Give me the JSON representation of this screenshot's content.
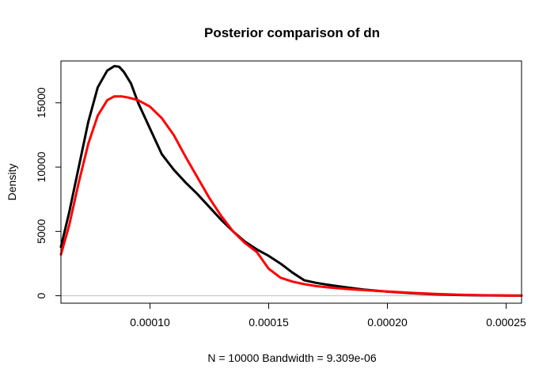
{
  "chart_data": {
    "type": "line",
    "title": "Posterior comparison of dn",
    "xlabel": "N = 10000   Bandwidth = 9.309e-06",
    "ylabel": "Density",
    "xlim": [
      6.25e-05,
      0.0002565
    ],
    "ylim": [
      -580,
      18250
    ],
    "x_ticks": [
      0.0001,
      0.00015,
      0.0002,
      0.00025
    ],
    "x_tick_labels": [
      "0.00010",
      "0.00015",
      "0.00020",
      "0.00025"
    ],
    "y_ticks": [
      0,
      5000,
      10000,
      15000
    ],
    "y_tick_labels": [
      "0",
      "5000",
      "10000",
      "15000"
    ],
    "zero_line": true,
    "grid": false,
    "series": [
      {
        "color": "#000000",
        "x": [
          6.25e-05,
          6.6e-05,
          7e-05,
          7.4e-05,
          7.8e-05,
          8.2e-05,
          8.5e-05,
          8.7e-05,
          8.9e-05,
          9.2e-05,
          9.5e-05,
          0.0001,
          0.000105,
          0.00011,
          0.000115,
          0.00012,
          0.000125,
          0.00013,
          0.000135,
          0.00014,
          0.000145,
          0.00015,
          0.000155,
          0.00016,
          0.000165,
          0.00017,
          0.000175,
          0.00018,
          0.000185,
          0.00019,
          0.0002,
          0.00021,
          0.00022,
          0.00023,
          0.00024,
          0.00025,
          0.0002565
        ],
        "y": [
          3800,
          6500,
          10000,
          13500,
          16200,
          17500,
          17850,
          17800,
          17400,
          16500,
          15000,
          13000,
          11000,
          9800,
          8800,
          7900,
          6900,
          5900,
          5000,
          4200,
          3600,
          3100,
          2500,
          1800,
          1200,
          1000,
          850,
          720,
          600,
          480,
          320,
          200,
          110,
          60,
          30,
          15,
          10
        ]
      },
      {
        "color": "#ff0000",
        "x": [
          6.25e-05,
          6.6e-05,
          7e-05,
          7.4e-05,
          7.8e-05,
          8.2e-05,
          8.5e-05,
          8.8e-05,
          9.1e-05,
          9.5e-05,
          0.0001,
          0.000105,
          0.00011,
          0.000115,
          0.00012,
          0.000125,
          0.00013,
          0.000135,
          0.00014,
          0.000145,
          0.00015,
          0.000155,
          0.00016,
          0.000165,
          0.00017,
          0.000175,
          0.00018,
          0.000185,
          0.00019,
          0.0002,
          0.00021,
          0.00022,
          0.00023,
          0.00024,
          0.00025,
          0.0002565
        ],
        "y": [
          3200,
          5500,
          8800,
          11800,
          14000,
          15200,
          15500,
          15500,
          15400,
          15200,
          14700,
          13800,
          12500,
          10800,
          9200,
          7600,
          6200,
          5000,
          4100,
          3400,
          2100,
          1400,
          1100,
          900,
          750,
          650,
          570,
          500,
          440,
          330,
          230,
          140,
          80,
          40,
          20,
          10
        ]
      }
    ]
  }
}
